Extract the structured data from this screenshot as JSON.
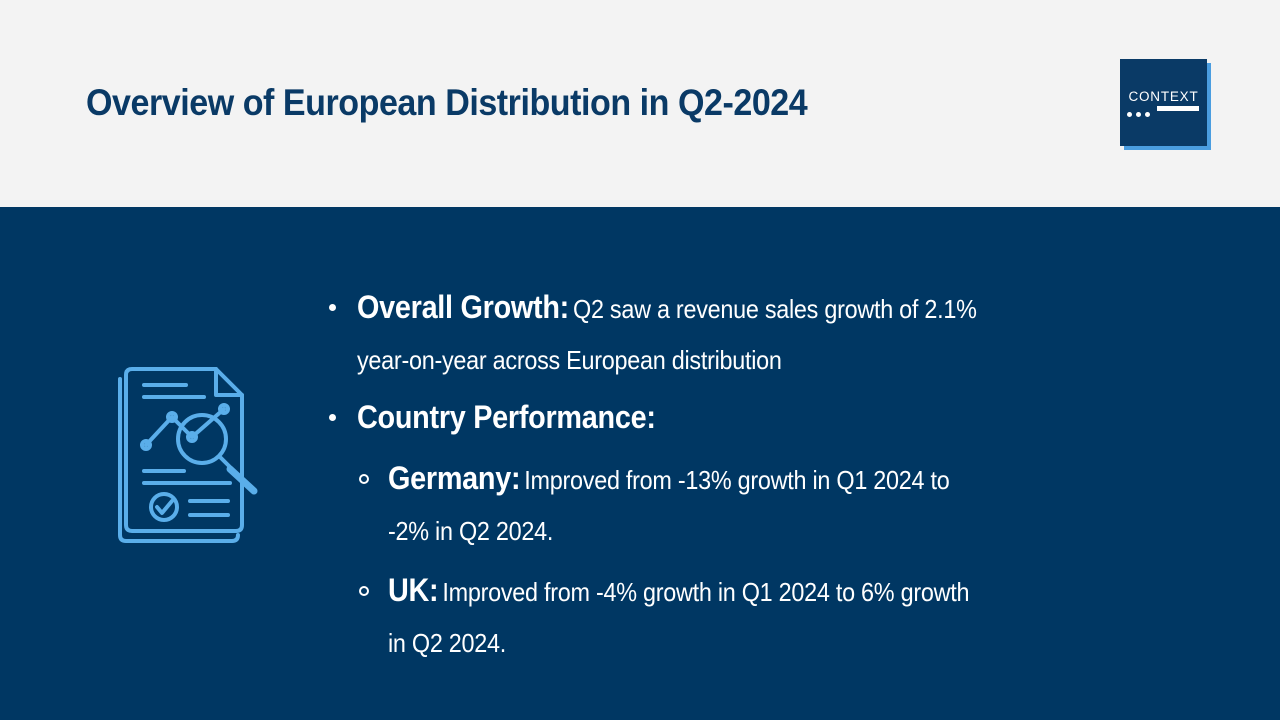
{
  "header": {
    "title": "Overview of European Distribution in Q2-2024",
    "logo_text": "CONTEXT"
  },
  "icon": {
    "name": "report-analysis-icon"
  },
  "bullets": [
    {
      "label": "Overall Growth:",
      "line1": "Q2 saw a revenue sales growth of 2.1%",
      "line2": "year-on-year across European distribution"
    },
    {
      "label": "Country Performance:",
      "sub": [
        {
          "label": "Germany:",
          "line1": "Improved from -13% growth in Q1 2024 to",
          "line2": "-2% in Q2 2024."
        },
        {
          "label": "UK:",
          "line1": "Improved from -4% growth in Q1 2024 to 6% growth",
          "line2": "in Q2 2024."
        }
      ]
    }
  ],
  "colors": {
    "header_bg": "#f3f3f3",
    "title": "#0a3a66",
    "body_bg": "#003763",
    "icon_stroke": "#5aaeea",
    "logo_shadow": "#4a9de0"
  }
}
